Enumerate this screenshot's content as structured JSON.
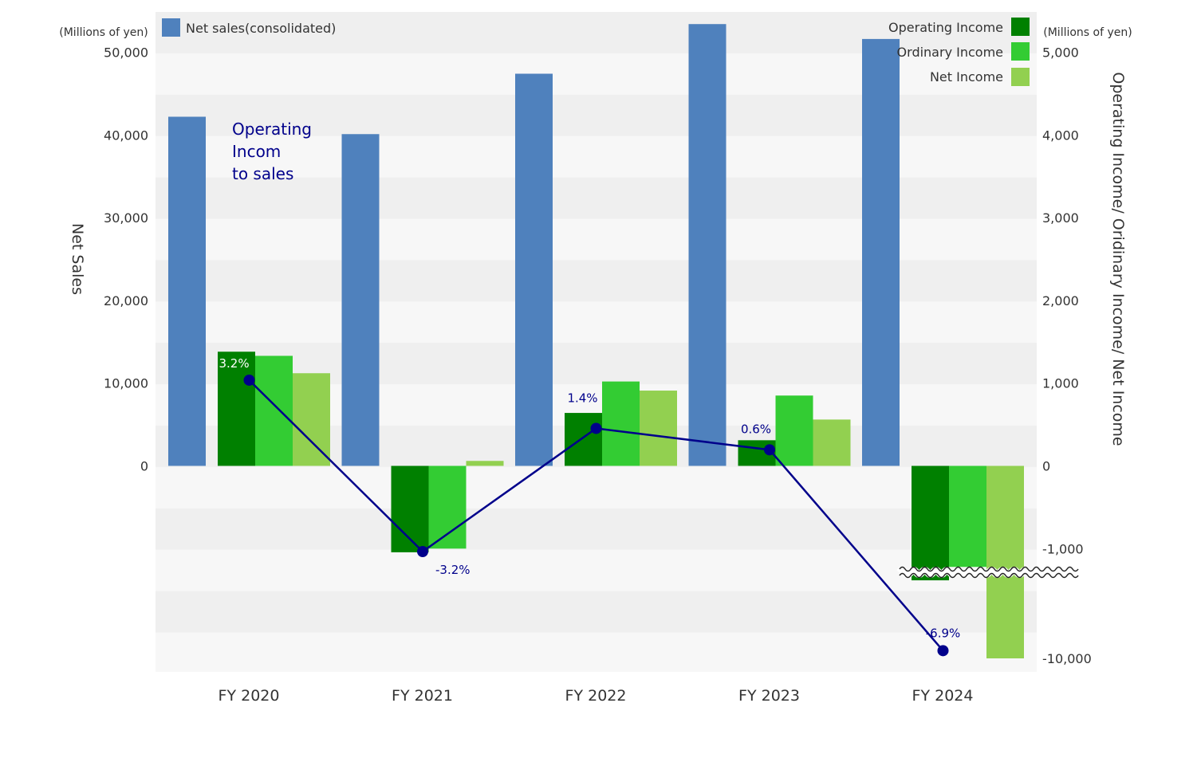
{
  "chart_data": {
    "type": "bar",
    "categories": [
      "FY 2020",
      "FY 2021",
      "FY 2022",
      "FY 2023",
      "FY 2024"
    ],
    "left_axis": {
      "label": "Net Sales",
      "unit": "(Millions of yen)",
      "ticks": [
        {
          "value": 50000,
          "label": "50,000"
        },
        {
          "value": 40000,
          "label": "40,000"
        },
        {
          "value": 30000,
          "label": "30,000"
        },
        {
          "value": 20000,
          "label": "20,000"
        },
        {
          "value": 10000,
          "label": "10,000"
        },
        {
          "value": 0,
          "label": "0"
        }
      ]
    },
    "right_axis": {
      "label": "Operating Income/ Oridinary Income/ Net Income",
      "unit": "(Millions of yen)",
      "ticks": [
        {
          "value": 5000,
          "label": "5,000"
        },
        {
          "value": 4000,
          "label": "4,000"
        },
        {
          "value": 3000,
          "label": "3,000"
        },
        {
          "value": 2000,
          "label": "2,000"
        },
        {
          "value": 1000,
          "label": "1,000"
        },
        {
          "value": 0,
          "label": "0"
        },
        {
          "value": -1000,
          "label": "-1,000"
        },
        {
          "value": -10000,
          "label": "-10,000"
        }
      ],
      "axis_break_between": [
        -1000,
        -10000
      ]
    },
    "series": [
      {
        "name": "Net sales(consolidated)",
        "axis": "left",
        "color": "#4f81bd",
        "values": [
          42200,
          40100,
          47400,
          53400,
          51600
        ]
      },
      {
        "name": "Operating Income",
        "axis": "right",
        "color": "#008000",
        "values": [
          1380,
          -1300,
          640,
          310,
          -3600
        ]
      },
      {
        "name": "Ordinary Income",
        "axis": "right",
        "color": "#33cc33",
        "values": [
          1330,
          -1000,
          1020,
          850,
          -2500
        ]
      },
      {
        "name": "Net Income",
        "axis": "right",
        "color": "#92d050",
        "values": [
          1120,
          60,
          910,
          560,
          -10000
        ]
      }
    ],
    "line_series": {
      "name": "Operating Incom to sales",
      "annotation_lines": [
        "Operating",
        "Incom",
        "to sales"
      ],
      "color": "#00008b",
      "values": [
        3.2,
        -3.2,
        1.4,
        0.6,
        -6.9
      ],
      "labels": [
        "3.2%",
        "-3.2%",
        "1.4%",
        "0.6%",
        "-6.9%"
      ]
    },
    "grid": "alternating bands"
  }
}
